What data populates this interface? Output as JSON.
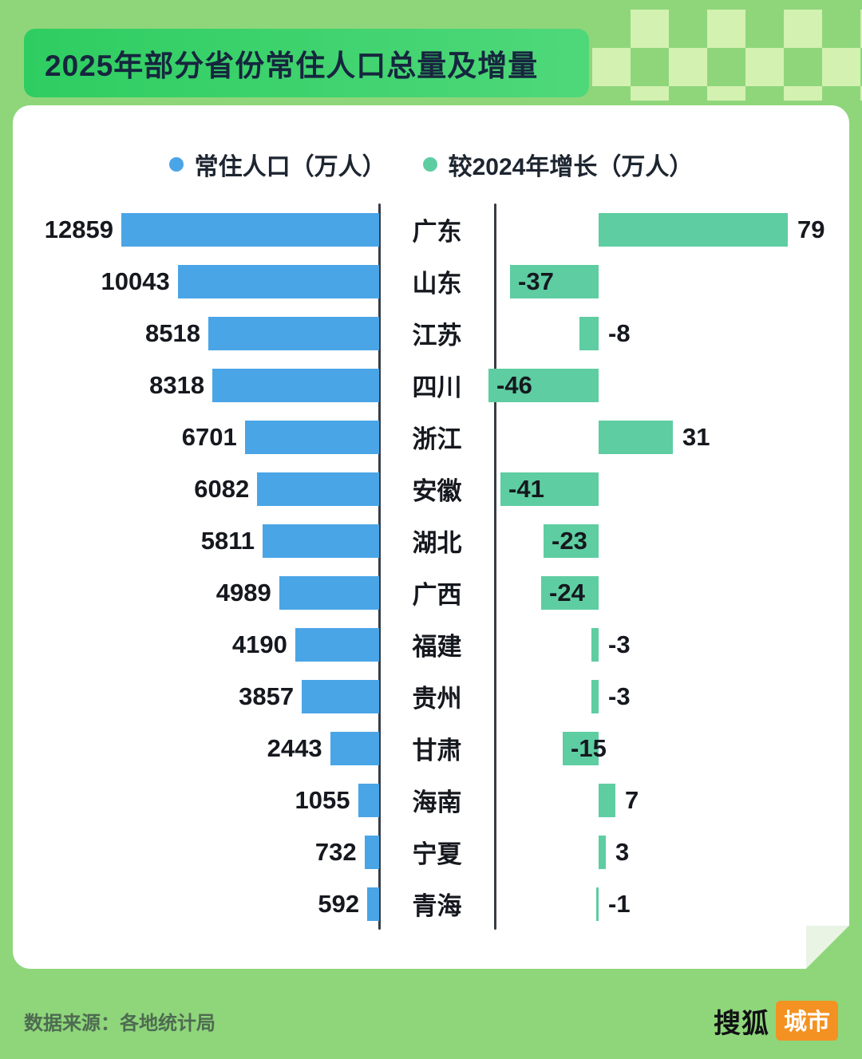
{
  "page": {
    "title": "2025年部分省份常住人口总量及增量",
    "source": "数据来源：各地统计局",
    "brand": {
      "name": "搜狐",
      "badge": "城市"
    }
  },
  "legend": {
    "items": [
      {
        "label": "常住人口（万人）",
        "color": "#4aa5e6"
      },
      {
        "label": "较2024年增长（万人）",
        "color": "#5ecda2"
      }
    ]
  },
  "chart_data": {
    "type": "bar",
    "subtype": "horizontal-diverging",
    "title": "2025年部分省份常住人口总量及增量",
    "categories": [
      "广东",
      "山东",
      "江苏",
      "四川",
      "浙江",
      "安徽",
      "湖北",
      "广西",
      "福建",
      "贵州",
      "甘肃",
      "海南",
      "宁夏",
      "青海"
    ],
    "series": [
      {
        "name": "常住人口（万人）",
        "color": "#4aa5e6",
        "values": [
          12859,
          10043,
          8518,
          8318,
          6701,
          6082,
          5811,
          4989,
          4190,
          3857,
          2443,
          1055,
          732,
          592
        ]
      },
      {
        "name": "较2024年增长（万人）",
        "color": "#5ecda2",
        "values": [
          79,
          -37,
          -8,
          -46,
          31,
          -41,
          -23,
          -24,
          -3,
          -3,
          -15,
          7,
          3,
          -1
        ]
      }
    ],
    "population_axis_max": 12859,
    "growth_axis_range": [
      -46,
      79
    ],
    "grid": false,
    "legend_position": "top"
  },
  "colors": {
    "page_background": "#8fd67b",
    "banner_green": "#2ecd61",
    "population_bar": "#4aa5e6",
    "growth_bar": "#5ecda2",
    "axis": "#373c47",
    "badge_orange": "#f39222"
  }
}
